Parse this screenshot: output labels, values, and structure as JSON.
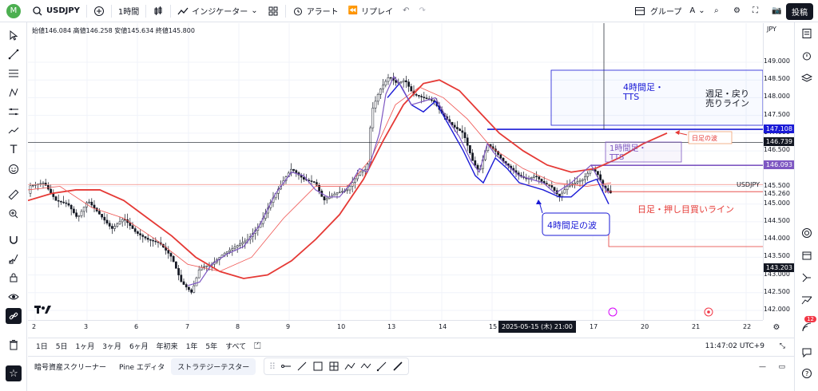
{
  "topbar": {
    "avatar_letter": "M",
    "symbol": "USDJPY",
    "interval": "1時間",
    "indicators": "インジケーター",
    "alert": "アラート",
    "replay": "リプレイ",
    "group": "グループ",
    "group_letter": "A",
    "publish": "投稿"
  },
  "ohlc": {
    "text": "始値146.084 高値146.258 安値145.634 終値145.800"
  },
  "price_scale": {
    "currency": "JPY",
    "labels": [
      "149.000",
      "148.500",
      "148.000",
      "147.500",
      "147.000",
      "146.500",
      "146.000",
      "145.500",
      "145.000",
      "144.500",
      "144.000",
      "143.500",
      "143.000",
      "142.500",
      "142.000"
    ],
    "tags": [
      {
        "value": "147.108",
        "color": "#1a1ad6"
      },
      {
        "value": "146.739",
        "color": "#131722"
      },
      {
        "value": "146.093",
        "color": "#7e57c2"
      },
      {
        "value": "143.203",
        "color": "#131722"
      }
    ],
    "usdjpy_label": "USDJPY",
    "usdjpy_value": "145.260"
  },
  "time_scale": {
    "labels": [
      "2",
      "3",
      "6",
      "7",
      "8",
      "9",
      "10",
      "13",
      "14",
      "15",
      "17",
      "20",
      "21",
      "22"
    ],
    "cursor": "2025-05-15 (木)  21:00"
  },
  "annotations": {
    "box_4h": "4時間足・\nTTS",
    "weekly_line": "週足・戻り\n売りライン",
    "daily_wave": "日足の波",
    "box_1h": "1時間足・\nTTS",
    "daily_dip": "日足・押し目買いライン",
    "wave_4h": "4時間足の波"
  },
  "range_bar": {
    "items": [
      "1日",
      "5日",
      "1ヶ月",
      "3ヶ月",
      "6ヶ月",
      "年初来",
      "1年",
      "5年",
      "すべて"
    ],
    "clock": "11:47:02 UTC+9"
  },
  "bottom_tabs": [
    "暗号資産スクリーナー",
    "Pine エディタ",
    "ストラテジーテスター"
  ],
  "notifications": "12",
  "colors": {
    "blue_line": "#1a1ad6",
    "purple_line": "#7e57c2",
    "red_ma": "#e53935",
    "annotation_red": "#e53935"
  }
}
